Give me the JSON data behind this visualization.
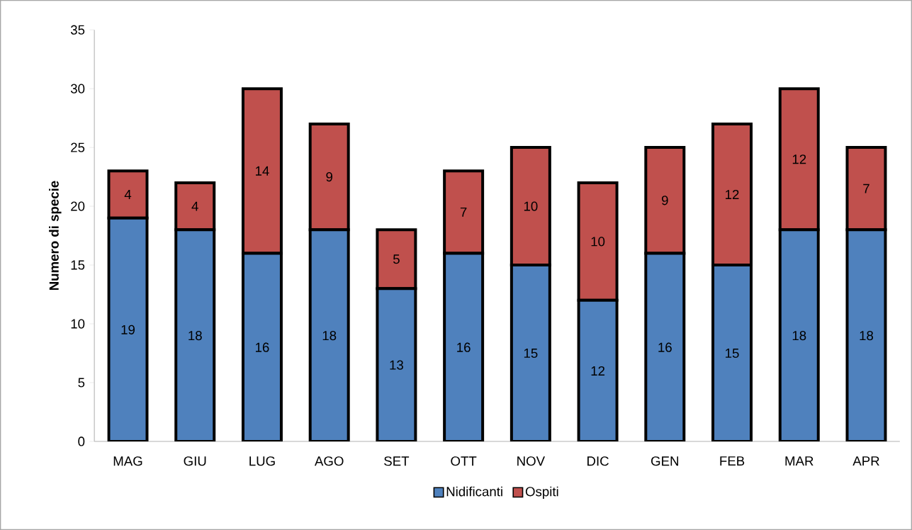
{
  "chart_data": {
    "type": "bar",
    "stacked": true,
    "ylabel": "Numero di specie",
    "categories": [
      "MAG",
      "GIU",
      "LUG",
      "AGO",
      "SET",
      "OTT",
      "NOV",
      "DIC",
      "GEN",
      "FEB",
      "MAR",
      "APR"
    ],
    "series": [
      {
        "name": "Nidificanti",
        "color": "#4f81bd",
        "values": [
          19,
          18,
          16,
          18,
          13,
          16,
          15,
          12,
          16,
          15,
          18,
          18
        ]
      },
      {
        "name": "Ospiti",
        "color": "#c0504d",
        "values": [
          4,
          4,
          14,
          9,
          5,
          7,
          10,
          10,
          9,
          12,
          12,
          7
        ]
      }
    ],
    "ylim": [
      0,
      35
    ],
    "yticks": [
      0,
      5,
      10,
      15,
      20,
      25,
      30,
      35
    ],
    "grid": false,
    "legend": "bottom",
    "data_labels": true
  }
}
